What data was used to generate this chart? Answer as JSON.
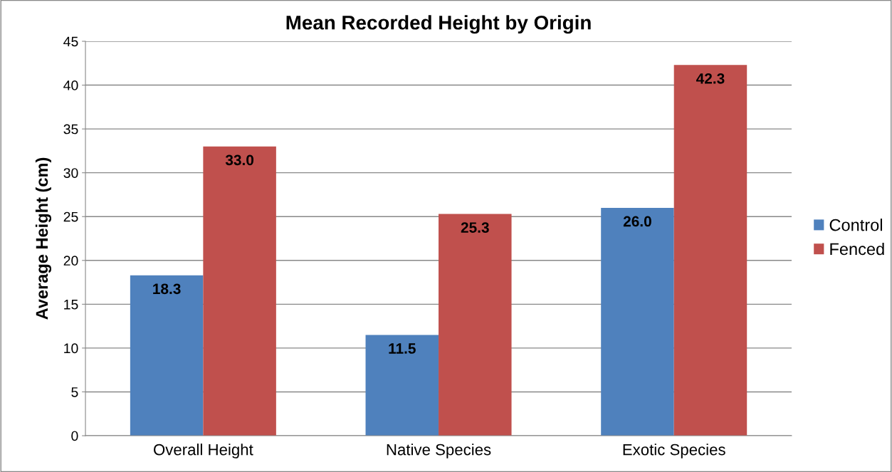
{
  "chart_data": {
    "type": "bar",
    "title": "Mean Recorded Height by Origin",
    "ylabel": "Average Height (cm)",
    "categories": [
      "Overall Height",
      "Native Species",
      "Exotic Species"
    ],
    "series": [
      {
        "name": "Control",
        "color": "#4f81bd",
        "values": [
          18.3,
          11.5,
          26.0
        ],
        "value_labels": [
          "18.3",
          "11.5",
          "26.0"
        ]
      },
      {
        "name": "Fenced",
        "color": "#c0504d",
        "values": [
          33.0,
          25.3,
          42.3
        ],
        "value_labels": [
          "33.0",
          "25.3",
          "42.3"
        ]
      }
    ],
    "ylim": [
      0,
      45
    ],
    "yticks": [
      0,
      5,
      10,
      15,
      20,
      25,
      30,
      35,
      40,
      45
    ],
    "grid": "y",
    "legend": "right"
  }
}
